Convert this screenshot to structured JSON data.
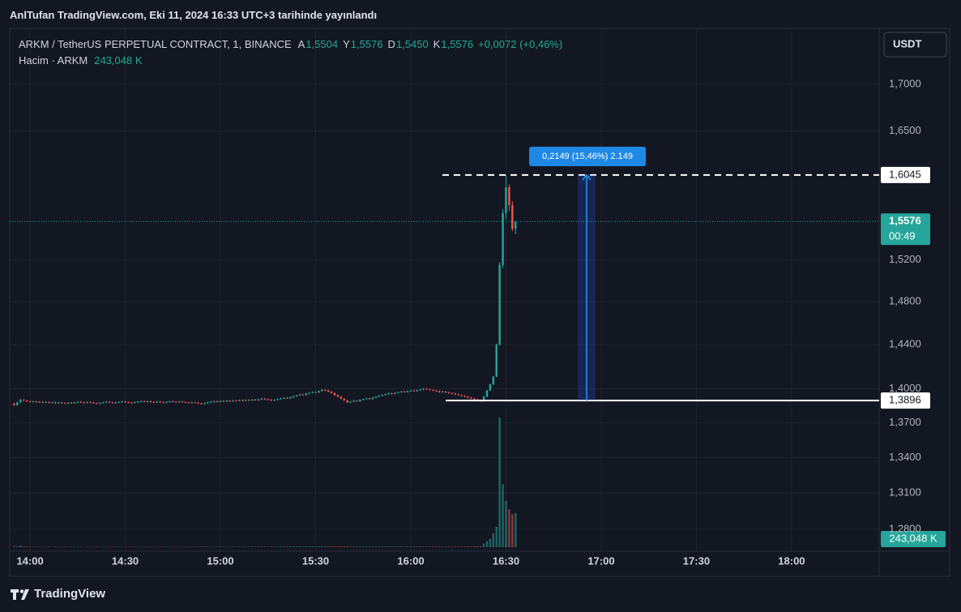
{
  "header": {
    "published": "AnlTufan TradingView.com, Eki 11, 2024 16:33 UTC+3 tarihinde yayınlandı"
  },
  "footer": {
    "brand": "TradingView"
  },
  "chart_data": {
    "type": "candlestick",
    "title": "ARKM / TetherUS PERPETUAL CONTRACT, 1, BINANCE",
    "legend_ohlc": [
      {
        "key": "A",
        "label": "1,5504"
      },
      {
        "key": "Y",
        "label": "1,5576"
      },
      {
        "key": "D",
        "label": "1,5450"
      },
      {
        "key": "K",
        "label": "1,5576"
      }
    ],
    "change": "+0,0072 (+0,46%)",
    "currency": "USDT",
    "up_color": "#26a69a",
    "down_color": "#ef5350",
    "x": [
      835,
      836,
      837,
      838,
      839,
      840,
      841,
      842,
      843,
      844,
      845,
      846,
      847,
      848,
      849,
      850,
      851,
      852,
      853,
      854,
      855,
      856,
      857,
      858,
      859,
      860,
      861,
      862,
      863,
      864,
      865,
      866,
      867,
      868,
      869,
      870,
      871,
      872,
      873,
      874,
      875,
      876,
      877,
      878,
      879,
      880,
      881,
      882,
      883,
      884,
      885,
      886,
      887,
      888,
      889,
      890,
      891,
      892,
      893,
      894,
      895,
      896,
      897,
      898,
      899,
      900,
      901,
      902,
      903,
      904,
      905,
      906,
      907,
      908,
      909,
      910,
      911,
      912,
      913,
      914,
      915,
      916,
      917,
      918,
      919,
      920,
      921,
      922,
      923,
      924,
      925,
      926,
      927,
      928,
      929,
      930,
      931,
      932,
      933,
      934,
      935,
      936,
      937,
      938,
      939,
      940,
      941,
      942,
      943,
      944,
      945,
      946,
      947,
      948,
      949,
      950,
      951,
      952,
      953,
      954,
      955,
      956,
      957,
      958,
      959,
      960,
      961,
      962,
      963,
      964,
      965,
      966,
      967,
      968,
      969,
      970,
      971,
      972,
      973,
      974,
      975,
      976,
      977,
      978,
      979,
      980,
      981,
      982,
      983,
      984,
      985,
      986,
      987,
      988,
      989,
      990,
      991,
      992,
      993
    ],
    "ohlc": [
      [
        1.387,
        1.3876,
        1.3849,
        1.3855
      ],
      [
        1.3855,
        1.3886,
        1.3849,
        1.388
      ],
      [
        1.388,
        1.3908,
        1.3874,
        1.3902
      ],
      [
        1.3902,
        1.3908,
        1.3889,
        1.3895
      ],
      [
        1.3895,
        1.3901,
        1.3884,
        1.389
      ],
      [
        1.389,
        1.3896,
        1.3878,
        1.3884
      ],
      [
        1.3884,
        1.3894,
        1.3878,
        1.3888
      ],
      [
        1.3888,
        1.3894,
        1.3875,
        1.3881
      ],
      [
        1.3881,
        1.3891,
        1.3875,
        1.3885
      ],
      [
        1.3885,
        1.3891,
        1.3873,
        1.3879
      ],
      [
        1.3879,
        1.3889,
        1.3873,
        1.3883
      ],
      [
        1.3883,
        1.3889,
        1.387,
        1.3876
      ],
      [
        1.3876,
        1.3886,
        1.387,
        1.388
      ],
      [
        1.388,
        1.3886,
        1.3866,
        1.3872
      ],
      [
        1.3872,
        1.3884,
        1.3866,
        1.3878
      ],
      [
        1.3878,
        1.3884,
        1.3868,
        1.3874
      ],
      [
        1.3874,
        1.388,
        1.3864,
        1.387
      ],
      [
        1.387,
        1.3883,
        1.3864,
        1.3877
      ],
      [
        1.3877,
        1.3883,
        1.3867,
        1.3873
      ],
      [
        1.3873,
        1.3885,
        1.3867,
        1.3879
      ],
      [
        1.3879,
        1.3891,
        1.3873,
        1.3885
      ],
      [
        1.3885,
        1.3891,
        1.3874,
        1.388
      ],
      [
        1.388,
        1.3886,
        1.387,
        1.3876
      ],
      [
        1.3876,
        1.3888,
        1.387,
        1.3882
      ],
      [
        1.3882,
        1.3888,
        1.3872,
        1.3878
      ],
      [
        1.3878,
        1.3884,
        1.3867,
        1.3873
      ],
      [
        1.3873,
        1.3879,
        1.3864,
        1.387
      ],
      [
        1.387,
        1.3882,
        1.3864,
        1.3876
      ],
      [
        1.3876,
        1.3886,
        1.387,
        1.388
      ],
      [
        1.388,
        1.389,
        1.3874,
        1.3884
      ],
      [
        1.3884,
        1.389,
        1.3873,
        1.3879
      ],
      [
        1.3879,
        1.3885,
        1.3868,
        1.3874
      ],
      [
        1.3874,
        1.3886,
        1.3868,
        1.388
      ],
      [
        1.388,
        1.3889,
        1.3874,
        1.3883
      ],
      [
        1.3883,
        1.3893,
        1.3877,
        1.3887
      ],
      [
        1.3887,
        1.3893,
        1.3876,
        1.3882
      ],
      [
        1.3882,
        1.3888,
        1.3872,
        1.3878
      ],
      [
        1.3878,
        1.3884,
        1.3869,
        1.3875
      ],
      [
        1.3875,
        1.3887,
        1.3869,
        1.3881
      ],
      [
        1.3881,
        1.3892,
        1.3875,
        1.3886
      ],
      [
        1.3886,
        1.3896,
        1.388,
        1.389
      ],
      [
        1.389,
        1.3896,
        1.3879,
        1.3885
      ],
      [
        1.3885,
        1.3895,
        1.3879,
        1.3889
      ],
      [
        1.3889,
        1.3895,
        1.3878,
        1.3884
      ],
      [
        1.3884,
        1.389,
        1.3874,
        1.388
      ],
      [
        1.388,
        1.3892,
        1.3874,
        1.3886
      ],
      [
        1.3886,
        1.3892,
        1.3876,
        1.3882
      ],
      [
        1.3882,
        1.3888,
        1.3871,
        1.3877
      ],
      [
        1.3877,
        1.3889,
        1.3871,
        1.3883
      ],
      [
        1.3883,
        1.3895,
        1.3877,
        1.3889
      ],
      [
        1.3889,
        1.3895,
        1.3879,
        1.3885
      ],
      [
        1.3885,
        1.3891,
        1.3875,
        1.3881
      ],
      [
        1.3881,
        1.3893,
        1.3875,
        1.3887
      ],
      [
        1.3887,
        1.3893,
        1.3877,
        1.3883
      ],
      [
        1.3883,
        1.3889,
        1.3873,
        1.3879
      ],
      [
        1.3879,
        1.3885,
        1.3869,
        1.3875
      ],
      [
        1.3875,
        1.3886,
        1.3869,
        1.388
      ],
      [
        1.388,
        1.3886,
        1.3871,
        1.3877
      ],
      [
        1.3877,
        1.3883,
        1.3865,
        1.3871
      ],
      [
        1.3871,
        1.3877,
        1.386,
        1.3866
      ],
      [
        1.3866,
        1.3878,
        1.386,
        1.3872
      ],
      [
        1.3872,
        1.3886,
        1.3866,
        1.388
      ],
      [
        1.388,
        1.3891,
        1.3874,
        1.3885
      ],
      [
        1.3885,
        1.3896,
        1.3879,
        1.389
      ],
      [
        1.389,
        1.3896,
        1.388,
        1.3886
      ],
      [
        1.3886,
        1.3898,
        1.388,
        1.3892
      ],
      [
        1.3892,
        1.3898,
        1.3883,
        1.3889
      ],
      [
        1.3889,
        1.39,
        1.3883,
        1.3894
      ],
      [
        1.3894,
        1.39,
        1.3884,
        1.389
      ],
      [
        1.389,
        1.3902,
        1.3884,
        1.3896
      ],
      [
        1.3896,
        1.3902,
        1.3887,
        1.3893
      ],
      [
        1.3893,
        1.3905,
        1.3887,
        1.3899
      ],
      [
        1.3899,
        1.3905,
        1.3889,
        1.3895
      ],
      [
        1.3895,
        1.3907,
        1.3889,
        1.3901
      ],
      [
        1.3901,
        1.3907,
        1.3891,
        1.3897
      ],
      [
        1.3897,
        1.391,
        1.3891,
        1.3904
      ],
      [
        1.3904,
        1.391,
        1.3894,
        1.39
      ],
      [
        1.39,
        1.3912,
        1.3894,
        1.3906
      ],
      [
        1.3906,
        1.3918,
        1.39,
        1.3912
      ],
      [
        1.3912,
        1.3918,
        1.3901,
        1.3907
      ],
      [
        1.3907,
        1.3913,
        1.3897,
        1.3903
      ],
      [
        1.3903,
        1.3909,
        1.3891,
        1.3897
      ],
      [
        1.3897,
        1.3908,
        1.3891,
        1.3902
      ],
      [
        1.3902,
        1.3914,
        1.3896,
        1.3908
      ],
      [
        1.3908,
        1.3921,
        1.3902,
        1.3915
      ],
      [
        1.3915,
        1.3926,
        1.3909,
        1.392
      ],
      [
        1.392,
        1.3926,
        1.391,
        1.3916
      ],
      [
        1.3916,
        1.3931,
        1.391,
        1.3925
      ],
      [
        1.3925,
        1.394,
        1.3919,
        1.3934
      ],
      [
        1.3934,
        1.3948,
        1.3928,
        1.3942
      ],
      [
        1.3942,
        1.3956,
        1.3936,
        1.395
      ],
      [
        1.395,
        1.3956,
        1.394,
        1.3946
      ],
      [
        1.3946,
        1.3964,
        1.394,
        1.3958
      ],
      [
        1.3958,
        1.3971,
        1.3952,
        1.3965
      ],
      [
        1.3965,
        1.3978,
        1.3959,
        1.3972
      ],
      [
        1.3972,
        1.3978,
        1.3962,
        1.3968
      ],
      [
        1.3968,
        1.3986,
        1.3962,
        1.398
      ],
      [
        1.398,
        1.3997,
        1.3974,
        1.3991
      ],
      [
        1.3991,
        1.3997,
        1.398,
        1.3986
      ],
      [
        1.3986,
        1.3992,
        1.3969,
        1.3975
      ],
      [
        1.3975,
        1.3981,
        1.3956,
        1.3962
      ],
      [
        1.3962,
        1.3968,
        1.3938,
        1.3944
      ],
      [
        1.3944,
        1.395,
        1.3924,
        1.393
      ],
      [
        1.393,
        1.3936,
        1.3906,
        1.3912
      ],
      [
        1.3912,
        1.3918,
        1.3892,
        1.3898
      ],
      [
        1.3898,
        1.3904,
        1.3874,
        1.388
      ],
      [
        1.388,
        1.3892,
        1.3874,
        1.3886
      ],
      [
        1.3886,
        1.3901,
        1.388,
        1.3895
      ],
      [
        1.3895,
        1.3901,
        1.3884,
        1.389
      ],
      [
        1.389,
        1.3908,
        1.3884,
        1.3902
      ],
      [
        1.3902,
        1.3914,
        1.3896,
        1.3908
      ],
      [
        1.3908,
        1.3921,
        1.3902,
        1.3915
      ],
      [
        1.3915,
        1.3921,
        1.3904,
        1.391
      ],
      [
        1.391,
        1.3928,
        1.3904,
        1.3922
      ],
      [
        1.3922,
        1.3936,
        1.3916,
        1.393
      ],
      [
        1.393,
        1.3944,
        1.3924,
        1.3938
      ],
      [
        1.3938,
        1.3951,
        1.3932,
        1.3945
      ],
      [
        1.3945,
        1.3958,
        1.3939,
        1.3952
      ],
      [
        1.3952,
        1.3966,
        1.3946,
        1.396
      ],
      [
        1.396,
        1.3966,
        1.3949,
        1.3955
      ],
      [
        1.3955,
        1.397,
        1.3949,
        1.3964
      ],
      [
        1.3964,
        1.3976,
        1.3958,
        1.397
      ],
      [
        1.397,
        1.3982,
        1.3964,
        1.3976
      ],
      [
        1.3976,
        1.3982,
        1.3966,
        1.3972
      ],
      [
        1.3972,
        1.3986,
        1.3966,
        1.398
      ],
      [
        1.398,
        1.3991,
        1.3974,
        1.3985
      ],
      [
        1.3985,
        1.3991,
        1.3973,
        1.3979
      ],
      [
        1.3979,
        1.3994,
        1.3973,
        1.3988
      ],
      [
        1.3988,
        1.4,
        1.3982,
        1.3994
      ],
      [
        1.3994,
        1.4008,
        1.3988,
        1.4002
      ],
      [
        1.4002,
        1.4008,
        1.399,
        1.3996
      ],
      [
        1.3996,
        1.4002,
        1.3984,
        1.399
      ],
      [
        1.399,
        1.3996,
        1.3979,
        1.3985
      ],
      [
        1.3985,
        1.3991,
        1.3973,
        1.3979
      ],
      [
        1.3979,
        1.3985,
        1.3964,
        1.397
      ],
      [
        1.397,
        1.3982,
        1.3964,
        1.3976
      ],
      [
        1.3976,
        1.3982,
        1.3962,
        1.3968
      ],
      [
        1.3968,
        1.3974,
        1.3956,
        1.3962
      ],
      [
        1.3962,
        1.3968,
        1.3951,
        1.3957
      ],
      [
        1.3957,
        1.3963,
        1.3944,
        1.395
      ],
      [
        1.395,
        1.3956,
        1.3938,
        1.3944
      ],
      [
        1.3944,
        1.395,
        1.3931,
        1.3937
      ],
      [
        1.3937,
        1.3943,
        1.3924,
        1.393
      ],
      [
        1.393,
        1.3936,
        1.3916,
        1.3922
      ],
      [
        1.3922,
        1.3928,
        1.3907,
        1.3913
      ],
      [
        1.3913,
        1.3919,
        1.3899,
        1.3905
      ],
      [
        1.3905,
        1.3911,
        1.3892,
        1.3898
      ],
      [
        1.3898,
        1.3904,
        1.3884,
        1.389
      ],
      [
        1.389,
        1.3936,
        1.3884,
        1.393
      ],
      [
        1.393,
        1.3991,
        1.3924,
        1.3985
      ],
      [
        1.3985,
        1.4046,
        1.3979,
        1.404
      ],
      [
        1.404,
        1.4116,
        1.4034,
        1.411
      ],
      [
        1.411,
        1.441,
        1.4104,
        1.44
      ],
      [
        1.44,
        1.518,
        1.439,
        1.515
      ],
      [
        1.515,
        1.57,
        1.512,
        1.566
      ],
      [
        1.566,
        1.6045,
        1.56,
        1.592
      ],
      [
        1.592,
        1.595,
        1.568,
        1.574
      ],
      [
        1.574,
        1.578,
        1.548,
        1.5504
      ],
      [
        1.5504,
        1.5576,
        1.545,
        1.5576
      ]
    ],
    "xlim": [
      833.6,
      1107.6
    ],
    "xticks": [
      {
        "value": 840,
        "label": "14:00"
      },
      {
        "value": 870,
        "label": "14:30"
      },
      {
        "value": 900,
        "label": "15:00"
      },
      {
        "value": 930,
        "label": "15:30"
      },
      {
        "value": 960,
        "label": "16:00"
      },
      {
        "value": 990,
        "label": "16:30"
      },
      {
        "value": 1020,
        "label": "17:00"
      },
      {
        "value": 1050,
        "label": "17:30"
      },
      {
        "value": 1080,
        "label": "18:00"
      }
    ],
    "ylim": [
      1.2623,
      1.7617
    ],
    "log_scale": true,
    "yticks": [
      {
        "value": 1.28,
        "label": "1,2800"
      },
      {
        "value": 1.31,
        "label": "1,3100"
      },
      {
        "value": 1.34,
        "label": "1,3400"
      },
      {
        "value": 1.37,
        "label": "1,3700"
      },
      {
        "value": 1.4,
        "label": "1,4000"
      },
      {
        "value": 1.44,
        "label": "1,4400"
      },
      {
        "value": 1.48,
        "label": "1,4800"
      },
      {
        "value": 1.52,
        "label": "1,5200"
      },
      {
        "value": 1.65,
        "label": "1,6500"
      },
      {
        "value": 1.7,
        "label": "1,7000"
      }
    ],
    "grid": true,
    "last_price": {
      "value": 1.5576,
      "label": "1,5576"
    },
    "countdown": "00:49",
    "levels": [
      {
        "value": 1.6045,
        "label": "1,6045",
        "style": "dashed"
      },
      {
        "value": 1.3896,
        "label": "1,3896",
        "style": "solid"
      }
    ],
    "measure": {
      "label": "0,2149 (15,46%) 2.149"
    },
    "volume": {
      "name": "Hacim · ARKM",
      "last_label": "243,048 K",
      "ylim": [
        0,
        1100000
      ],
      "values": [
        9000,
        7000,
        12000,
        5000,
        4000,
        3500,
        3000,
        4200,
        2800,
        3100,
        2500,
        3300,
        2900,
        4100,
        2600,
        2200,
        3000,
        2700,
        2400,
        3600,
        2900,
        2300,
        2000,
        3100,
        2600,
        2800,
        3400,
        2500,
        2200,
        3000,
        2700,
        2400,
        3200,
        2900,
        2600,
        2300,
        3000,
        2500,
        2800,
        3300,
        2900,
        2200,
        2600,
        3100,
        2700,
        2400,
        2900,
        3500,
        2800,
        2500,
        2300,
        2700,
        3000,
        2600,
        2400,
        2900,
        3200,
        2800,
        4000,
        4500,
        3800,
        3300,
        2900,
        3100,
        2700,
        3400,
        2600,
        3000,
        2800,
        3200,
        2900,
        3300,
        3000,
        3600,
        3100,
        3800,
        3200,
        3500,
        4100,
        3300,
        2900,
        3600,
        3100,
        3800,
        4300,
        4000,
        3400,
        4700,
        5200,
        5600,
        6000,
        4100,
        5300,
        5800,
        6200,
        4400,
        5900,
        6800,
        4700,
        5100,
        5800,
        6300,
        6000,
        5700,
        5400,
        6500,
        4200,
        4600,
        3800,
        4400,
        4100,
        4800,
        3600,
        4500,
        4900,
        5200,
        4700,
        5000,
        5500,
        3900,
        4600,
        4300,
        4800,
        3700,
        4400,
        4100,
        3600,
        4500,
        4900,
        5300,
        4200,
        3800,
        3500,
        3900,
        4300,
        3600,
        3400,
        3700,
        3300,
        3800,
        3600,
        3900,
        4200,
        4600,
        5000,
        5400,
        5800,
        6500,
        25000,
        42000,
        60000,
        98000,
        145000,
        925000,
        450000,
        330000,
        270000,
        235000,
        243048
      ]
    }
  }
}
